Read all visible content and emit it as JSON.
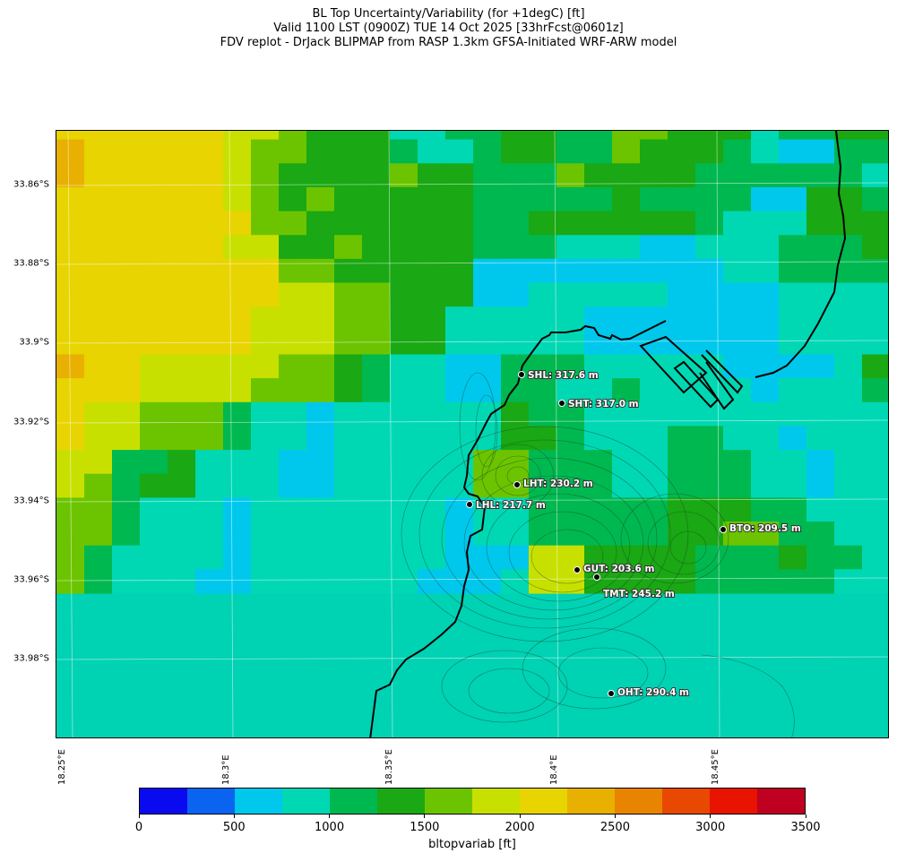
{
  "title": {
    "line1": "BL Top Uncertainty/Variability (for +1degC) [ft]",
    "line2": "Valid 1100 LST (0900Z) TUE 14 Oct 2025 [33hrFcst@0601z]",
    "line3": "FDV replot - DrJack BLIPMAP from RASP 1.3km GFSA-Initiated WRF-ARW model"
  },
  "lat_labels": [
    "33.86°S",
    "33.88°S",
    "33.9°S",
    "33.92°S",
    "33.94°S",
    "33.96°S",
    "33.98°S"
  ],
  "lon_labels": [
    "18.25°E",
    "18.3°E",
    "18.35°E",
    "18.4°E",
    "18.45°E"
  ],
  "sites": [
    {
      "name": "SHL",
      "label": "SHL: 317.6 m"
    },
    {
      "name": "SHT",
      "label": "SHT: 317.0 m"
    },
    {
      "name": "LHT",
      "label": "LHT: 230.2 m"
    },
    {
      "name": "LHL",
      "label": "LHL: 217.7 m"
    },
    {
      "name": "BTO",
      "label": "BTO: 209.5 m"
    },
    {
      "name": "GUT",
      "label": "GUT: 203.6 m"
    },
    {
      "name": "TMT",
      "label": "TMT: 245.2 m"
    },
    {
      "name": "OHT",
      "label": "OHT: 290.4 m"
    }
  ],
  "colorbar": {
    "label": "bltopvariab [ft]",
    "ticks": [
      "0",
      "500",
      "1000",
      "1500",
      "2000",
      "2500",
      "3000",
      "3500"
    ],
    "colors": [
      "#0a0af0",
      "#0a64f0",
      "#00c8ec",
      "#00d8b4",
      "#00b850",
      "#1aa814",
      "#6cc400",
      "#c8e000",
      "#e8d400",
      "#e8b000",
      "#e88400",
      "#e84800",
      "#e81400",
      "#c00020"
    ]
  },
  "grid_levels": [
    [
      8,
      8,
      8,
      8,
      8,
      8,
      7,
      7,
      6,
      5,
      5,
      5,
      3,
      3,
      4,
      4,
      5,
      5,
      4,
      4,
      6,
      6,
      5,
      5,
      5,
      3,
      4,
      4,
      5,
      5
    ],
    [
      9,
      8,
      8,
      8,
      8,
      8,
      7,
      6,
      6,
      5,
      5,
      5,
      4,
      3,
      3,
      4,
      5,
      5,
      4,
      4,
      6,
      5,
      5,
      5,
      4,
      3,
      2,
      2,
      4,
      4
    ],
    [
      9,
      8,
      8,
      8,
      8,
      8,
      7,
      6,
      5,
      5,
      5,
      5,
      6,
      5,
      5,
      4,
      4,
      4,
      6,
      5,
      5,
      5,
      5,
      4,
      4,
      4,
      4,
      4,
      4,
      3
    ],
    [
      8,
      8,
      8,
      8,
      8,
      8,
      7,
      6,
      5,
      6,
      5,
      5,
      5,
      5,
      5,
      4,
      4,
      4,
      4,
      4,
      5,
      4,
      4,
      4,
      4,
      2,
      2,
      5,
      5,
      4
    ],
    [
      8,
      8,
      8,
      8,
      8,
      8,
      8,
      6,
      6,
      5,
      5,
      5,
      5,
      5,
      5,
      4,
      4,
      5,
      5,
      5,
      5,
      5,
      5,
      4,
      3,
      3,
      3,
      5,
      5,
      5
    ],
    [
      8,
      8,
      8,
      8,
      8,
      8,
      7,
      7,
      5,
      5,
      6,
      5,
      5,
      5,
      5,
      4,
      4,
      4,
      3,
      3,
      3,
      2,
      2,
      3,
      3,
      3,
      4,
      4,
      4,
      5
    ],
    [
      8,
      8,
      8,
      8,
      8,
      8,
      8,
      8,
      6,
      6,
      5,
      5,
      5,
      5,
      5,
      2,
      2,
      2,
      2,
      2,
      2,
      2,
      2,
      2,
      3,
      3,
      4,
      4,
      4,
      4
    ],
    [
      8,
      8,
      8,
      8,
      8,
      8,
      8,
      8,
      7,
      7,
      6,
      6,
      5,
      5,
      5,
      2,
      2,
      3,
      3,
      3,
      3,
      3,
      2,
      2,
      2,
      2,
      3,
      3,
      3,
      3
    ],
    [
      8,
      8,
      8,
      8,
      8,
      8,
      8,
      7,
      7,
      7,
      6,
      6,
      5,
      5,
      3,
      3,
      3,
      3,
      3,
      2,
      2,
      2,
      2,
      2,
      2,
      2,
      3,
      3,
      3,
      3
    ],
    [
      8,
      8,
      8,
      8,
      8,
      8,
      8,
      7,
      7,
      7,
      6,
      6,
      5,
      5,
      3,
      3,
      3,
      3,
      3,
      2,
      2,
      2,
      2,
      2,
      2,
      2,
      3,
      3,
      3,
      3
    ],
    [
      9,
      8,
      8,
      7,
      7,
      7,
      7,
      7,
      6,
      6,
      5,
      4,
      3,
      3,
      2,
      2,
      4,
      4,
      4,
      3,
      3,
      3,
      3,
      3,
      2,
      2,
      2,
      2,
      3,
      5
    ],
    [
      8,
      8,
      8,
      7,
      7,
      7,
      7,
      6,
      6,
      6,
      5,
      4,
      3,
      3,
      2,
      2,
      4,
      4,
      3,
      3,
      4,
      3,
      3,
      3,
      3,
      2,
      3,
      3,
      3,
      4
    ],
    [
      8,
      7,
      7,
      6,
      6,
      6,
      4,
      3,
      3,
      2,
      3,
      3,
      3,
      3,
      3,
      3,
      5,
      4,
      4,
      3,
      3,
      3,
      3,
      3,
      3,
      3,
      3,
      3,
      3,
      3
    ],
    [
      8,
      7,
      7,
      6,
      6,
      6,
      4,
      3,
      3,
      2,
      3,
      3,
      3,
      3,
      3,
      3,
      5,
      5,
      4,
      3,
      3,
      3,
      4,
      4,
      3,
      3,
      2,
      3,
      3,
      3
    ],
    [
      7,
      7,
      4,
      4,
      5,
      3,
      3,
      3,
      2,
      2,
      3,
      3,
      3,
      3,
      3,
      6,
      6,
      4,
      4,
      4,
      3,
      3,
      4,
      4,
      4,
      3,
      3,
      2,
      3,
      3
    ],
    [
      7,
      6,
      4,
      5,
      5,
      3,
      3,
      3,
      2,
      2,
      3,
      3,
      3,
      3,
      3,
      6,
      6,
      4,
      4,
      4,
      3,
      3,
      4,
      4,
      4,
      3,
      3,
      2,
      3,
      3
    ],
    [
      6,
      6,
      4,
      3,
      3,
      3,
      2,
      3,
      3,
      3,
      3,
      3,
      3,
      3,
      2,
      3,
      3,
      4,
      4,
      4,
      4,
      4,
      5,
      5,
      5,
      4,
      4,
      3,
      3,
      3
    ],
    [
      6,
      6,
      4,
      3,
      3,
      3,
      2,
      3,
      3,
      3,
      3,
      3,
      3,
      3,
      2,
      3,
      3,
      4,
      4,
      4,
      4,
      4,
      5,
      5,
      6,
      6,
      4,
      4,
      3,
      3
    ],
    [
      6,
      4,
      3,
      3,
      3,
      3,
      2,
      3,
      3,
      3,
      3,
      3,
      3,
      3,
      2,
      2,
      2,
      7,
      7,
      5,
      5,
      5,
      5,
      4,
      4,
      4,
      5,
      4,
      4,
      3
    ],
    [
      6,
      4,
      3,
      3,
      3,
      2,
      2,
      3,
      3,
      3,
      3,
      3,
      3,
      2,
      2,
      2,
      3,
      7,
      7,
      5,
      5,
      5,
      5,
      4,
      4,
      4,
      4,
      4,
      3,
      3
    ]
  ]
}
